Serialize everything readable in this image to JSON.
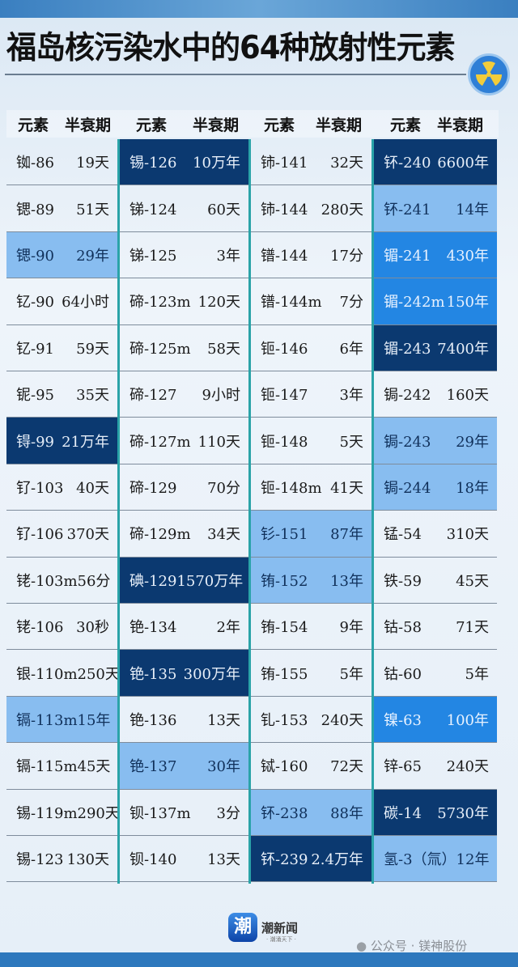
{
  "title": "福岛核污染水中的64种放射性元素",
  "header": {
    "element": "元素",
    "half_life": "半衰期"
  },
  "colors": {
    "light": "#88bdf0",
    "mid": "#2386e3",
    "dark": "#0b3970",
    "separator": "#2aa3a8"
  },
  "columns": [
    [
      {
        "el": "铷-86",
        "hl": "19天"
      },
      {
        "el": "锶-89",
        "hl": "51天"
      },
      {
        "el": "锶-90",
        "hl": "29年",
        "lv": "light"
      },
      {
        "el": "钇-90",
        "hl": "64小时"
      },
      {
        "el": "钇-91",
        "hl": "59天"
      },
      {
        "el": "铌-95",
        "hl": "35天"
      },
      {
        "el": "锝-99",
        "hl": "21万年",
        "lv": "dark"
      },
      {
        "el": "钌-103",
        "hl": "40天"
      },
      {
        "el": "钌-106",
        "hl": "370天"
      },
      {
        "el": "铑-103m",
        "hl": "56分"
      },
      {
        "el": "铑-106",
        "hl": "30秒"
      },
      {
        "el": "银-110m",
        "hl": "250天"
      },
      {
        "el": "镉-113m",
        "hl": "15年",
        "lv": "light"
      },
      {
        "el": "镉-115m",
        "hl": "45天"
      },
      {
        "el": "锡-119m",
        "hl": "290天"
      },
      {
        "el": "锡-123",
        "hl": "130天"
      }
    ],
    [
      {
        "el": "锡-126",
        "hl": "10万年",
        "lv": "dark"
      },
      {
        "el": "锑-124",
        "hl": "60天"
      },
      {
        "el": "锑-125",
        "hl": "3年"
      },
      {
        "el": "碲-123m",
        "hl": "120天"
      },
      {
        "el": "碲-125m",
        "hl": "58天"
      },
      {
        "el": "碲-127",
        "hl": "9小时"
      },
      {
        "el": "碲-127m",
        "hl": "110天"
      },
      {
        "el": "碲-129",
        "hl": "70分"
      },
      {
        "el": "碲-129m",
        "hl": "34天"
      },
      {
        "el": "碘-129",
        "hl": "1570万年",
        "lv": "dark"
      },
      {
        "el": "铯-134",
        "hl": "2年"
      },
      {
        "el": "铯-135",
        "hl": "300万年",
        "lv": "dark"
      },
      {
        "el": "铯-136",
        "hl": "13天"
      },
      {
        "el": "铯-137",
        "hl": "30年",
        "lv": "light"
      },
      {
        "el": "钡-137m",
        "hl": "3分"
      },
      {
        "el": "钡-140",
        "hl": "13天"
      }
    ],
    [
      {
        "el": "铈-141",
        "hl": "32天"
      },
      {
        "el": "铈-144",
        "hl": "280天"
      },
      {
        "el": "镨-144",
        "hl": "17分"
      },
      {
        "el": "镨-144m",
        "hl": "7分"
      },
      {
        "el": "钷-146",
        "hl": "6年"
      },
      {
        "el": "钷-147",
        "hl": "3年"
      },
      {
        "el": "钷-148",
        "hl": "5天"
      },
      {
        "el": "钷-148m",
        "hl": "41天"
      },
      {
        "el": "钐-151",
        "hl": "87年",
        "lv": "light"
      },
      {
        "el": "铕-152",
        "hl": "13年",
        "lv": "light"
      },
      {
        "el": "铕-154",
        "hl": "9年"
      },
      {
        "el": "铕-155",
        "hl": "5年"
      },
      {
        "el": "钆-153",
        "hl": "240天"
      },
      {
        "el": "铽-160",
        "hl": "72天"
      },
      {
        "el": "钚-238",
        "hl": "88年",
        "lv": "light"
      },
      {
        "el": "钚-239",
        "hl": "2.4万年",
        "lv": "dark"
      }
    ],
    [
      {
        "el": "钚-240",
        "hl": "6600年",
        "lv": "dark"
      },
      {
        "el": "钚-241",
        "hl": "14年",
        "lv": "light"
      },
      {
        "el": "镅-241",
        "hl": "430年",
        "lv": "mid"
      },
      {
        "el": "镅-242m",
        "hl": "150年",
        "lv": "mid"
      },
      {
        "el": "镅-243",
        "hl": "7400年",
        "lv": "dark"
      },
      {
        "el": "锔-242",
        "hl": "160天"
      },
      {
        "el": "锔-243",
        "hl": "29年",
        "lv": "light"
      },
      {
        "el": "锔-244",
        "hl": "18年",
        "lv": "light"
      },
      {
        "el": "锰-54",
        "hl": "310天"
      },
      {
        "el": "铁-59",
        "hl": "45天"
      },
      {
        "el": "钴-58",
        "hl": "71天"
      },
      {
        "el": "钴-60",
        "hl": "5年"
      },
      {
        "el": "镍-63",
        "hl": "100年",
        "lv": "mid"
      },
      {
        "el": "锌-65",
        "hl": "240天"
      },
      {
        "el": "碳-14",
        "hl": "5730年",
        "lv": "dark"
      },
      {
        "el": "氢-3（氚）",
        "hl": "12年",
        "lv": "light"
      }
    ]
  ],
  "footer": {
    "logo_char": "潮",
    "brand": "潮新闻",
    "brand_sub": "· 潮涌天下 ·",
    "watermark": "公众号 · 镁神股份"
  },
  "icons": {
    "badge": "radiation-icon",
    "watermark": "wechat-icon"
  }
}
